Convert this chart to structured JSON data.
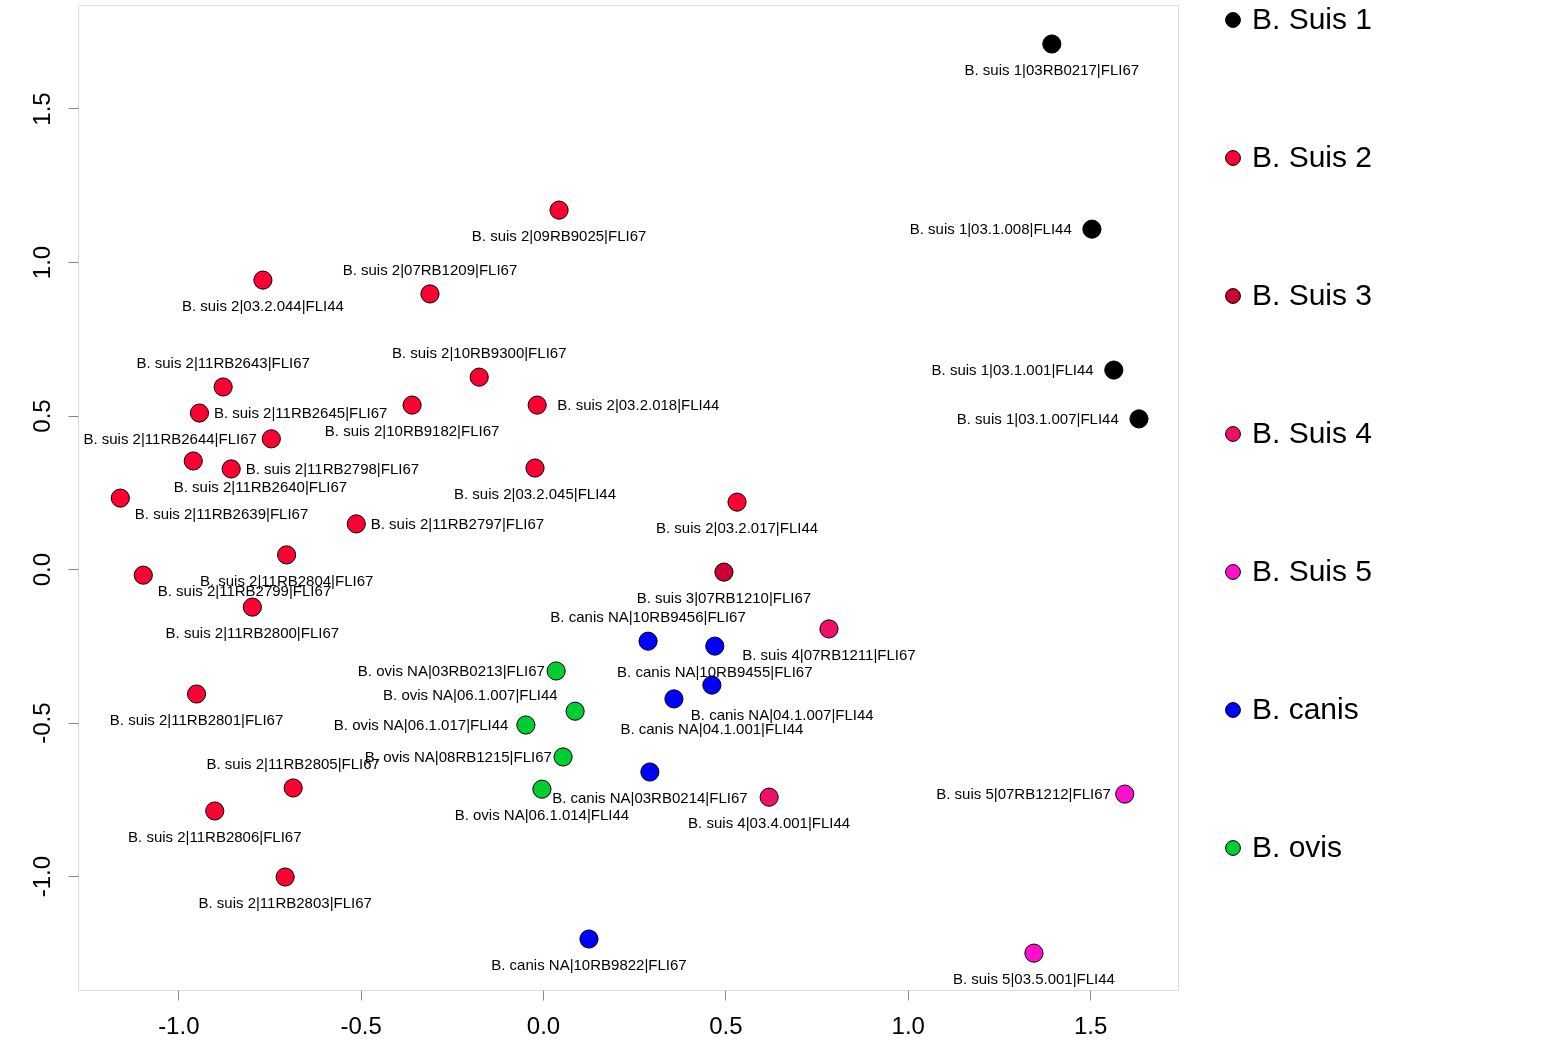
{
  "chart_data": {
    "type": "scatter",
    "legend": "right",
    "grid": false,
    "marker": "circle",
    "xlim": [
      -1.275,
      1.741
    ],
    "ylim": [
      -1.371,
      1.837
    ],
    "xticks": [
      {
        "value": -1,
        "label": "-1.0"
      },
      {
        "value": -0.5,
        "label": "-0.5"
      },
      {
        "value": 0,
        "label": "0.0"
      },
      {
        "value": 0.5,
        "label": "0.5"
      },
      {
        "value": 1,
        "label": "1.0"
      },
      {
        "value": 1.5,
        "label": "1.5"
      }
    ],
    "yticks": [
      {
        "value": -1,
        "label": "-1.0"
      },
      {
        "value": -0.5,
        "label": "-0.5"
      },
      {
        "value": 0,
        "label": "0.0"
      },
      {
        "value": 0.5,
        "label": "0.5"
      },
      {
        "value": 1,
        "label": "1.0"
      },
      {
        "value": 1.5,
        "label": "1.5"
      }
    ],
    "series": [
      {
        "name": "B. Suis 1",
        "color": "#000000",
        "x": [
          1.395,
          1.505,
          1.565,
          1.634
        ],
        "values": [
          1.71,
          1.107,
          0.648,
          0.489
        ]
      },
      {
        "name": "B. Suis 2",
        "color": "#ff0033",
        "x": [
          0.044,
          -0.768,
          -0.31,
          -0.877,
          -0.175,
          -0.359,
          -0.016,
          -0.942,
          -0.745,
          -0.959,
          -0.855,
          -0.022,
          -1.159,
          -0.512,
          0.532,
          -0.703,
          -1.096,
          -0.797,
          -0.95,
          -0.685,
          -0.9,
          -0.707
        ],
        "values": [
          1.169,
          0.941,
          0.896,
          0.593,
          0.625,
          0.534,
          0.534,
          0.508,
          0.424,
          0.352,
          0.326,
          0.329,
          0.231,
          0.147,
          0.218,
          0.046,
          -0.02,
          -0.124,
          -0.407,
          -0.713,
          -0.788,
          -1.003
        ]
      },
      {
        "name": "B. Suis 3",
        "color": "#cc0033",
        "x": [
          0.496
        ],
        "values": [
          -0.01
        ]
      },
      {
        "name": "B. Suis 4",
        "color": "#f0106a",
        "x": [
          0.784,
          0.62
        ],
        "values": [
          -0.195,
          -0.743
        ]
      },
      {
        "name": "B. Suis 5",
        "color": "#ff10cc",
        "x": [
          1.595,
          1.346
        ],
        "values": [
          -0.733,
          -1.251
        ]
      },
      {
        "name": "B.  canis",
        "color": "#0000ff",
        "x": [
          0.288,
          0.471,
          0.463,
          0.359,
          0.293,
          0.126
        ],
        "values": [
          -0.235,
          -0.251,
          -0.378,
          -0.423,
          -0.661,
          -1.205
        ]
      },
      {
        "name": "B. ovis",
        "color": "#00cc33",
        "x": [
          0.036,
          0.088,
          -0.047,
          0.055,
          -0.003
        ],
        "values": [
          -0.332,
          -0.463,
          -0.508,
          -0.612,
          -0.717
        ]
      }
    ],
    "annotations": [
      {
        "text": "B. suis 1|03RB0217|FLI67",
        "x": 1.395,
        "y": 1.71
      },
      {
        "text": "B. suis 1|03.1.008|FLI44",
        "x": 1.505,
        "y": 1.107
      },
      {
        "text": "B. suis 1|03.1.001|FLI44",
        "x": 1.565,
        "y": 0.648
      },
      {
        "text": "B. suis 1|03.1.007|FLI44",
        "x": 1.634,
        "y": 0.489
      },
      {
        "text": "B. suis 2|09RB9025|FLI67",
        "x": 0.044,
        "y": 1.169
      },
      {
        "text": "B. suis 2|03.2.044|FLI44",
        "x": -0.768,
        "y": 0.941
      },
      {
        "text": "B. suis 2|07RB1209|FLI67",
        "x": -0.31,
        "y": 0.896
      },
      {
        "text": "B. suis 2|11RB2643|FLI67",
        "x": -0.877,
        "y": 0.593
      },
      {
        "text": "B. suis 2|10RB9300|FLI67",
        "x": -0.175,
        "y": 0.625
      },
      {
        "text": "B. suis 2|10RB9182|FLI67",
        "x": -0.359,
        "y": 0.534
      },
      {
        "text": "B. suis 2|03.2.018|FLI44",
        "x": -0.016,
        "y": 0.534
      },
      {
        "text": "B. suis 2|11RB2645|FLI67",
        "x": -0.942,
        "y": 0.508
      },
      {
        "text": "B. suis 2|11RB2644|FLI67",
        "x": -0.745,
        "y": 0.424
      },
      {
        "text": "B. suis 2|11RB2640|FLI67",
        "x": -0.959,
        "y": 0.352
      },
      {
        "text": "B. suis 2|11RB2798|FLI67",
        "x": -0.855,
        "y": 0.326
      },
      {
        "text": "B. suis 2|03.2.045|FLI44",
        "x": -0.022,
        "y": 0.329
      },
      {
        "text": "B. suis 2|11RB2639|FLI67",
        "x": -1.159,
        "y": 0.231
      },
      {
        "text": "B. suis 2|11RB2797|FLI67",
        "x": -0.512,
        "y": 0.147
      },
      {
        "text": "B. suis 2|03.2.017|FLI44",
        "x": 0.532,
        "y": 0.218
      },
      {
        "text": "B. suis 2|11RB2804|FLI67",
        "x": -0.703,
        "y": 0.046
      },
      {
        "text": "B. suis 2|11RB2799|FLI67",
        "x": -1.096,
        "y": -0.02
      },
      {
        "text": "B. suis 2|11RB2800|FLI67",
        "x": -0.797,
        "y": -0.124
      },
      {
        "text": "B. suis 2|11RB2801|FLI67",
        "x": -0.95,
        "y": -0.407
      },
      {
        "text": "B. suis 2|11RB2805|FLI67",
        "x": -0.685,
        "y": -0.713
      },
      {
        "text": "B. suis 2|11RB2806|FLI67",
        "x": -0.9,
        "y": -0.788
      },
      {
        "text": "B. suis 2|11RB2803|FLI67",
        "x": -0.707,
        "y": -1.003
      },
      {
        "text": "B. suis 3|07RB1210|FLI67",
        "x": 0.496,
        "y": -0.01
      },
      {
        "text": "B. suis 4|07RB1211|FLI67",
        "x": 0.784,
        "y": -0.195
      },
      {
        "text": "B. suis 4|03.4.001|FLI44",
        "x": 0.62,
        "y": -0.743
      },
      {
        "text": "B. suis 5|07RB1212|FLI67",
        "x": 1.595,
        "y": -0.733
      },
      {
        "text": "B. suis 5|03.5.001|FLI44",
        "x": 1.346,
        "y": -1.251
      },
      {
        "text": "B. canis NA|10RB9456|FLI67",
        "x": 0.288,
        "y": -0.235
      },
      {
        "text": "B. canis NA|10RB9455|FLI67",
        "x": 0.471,
        "y": -0.251
      },
      {
        "text": "B. canis NA|04.1.001|FLI44",
        "x": 0.463,
        "y": -0.378
      },
      {
        "text": "B. canis NA|04.1.007|FLI44",
        "x": 0.359,
        "y": -0.423
      },
      {
        "text": "B. canis NA|03RB0214|FLI67",
        "x": 0.293,
        "y": -0.661
      },
      {
        "text": "B. canis NA|10RB9822|FLI67",
        "x": 0.126,
        "y": -1.205
      },
      {
        "text": "B. ovis NA|03RB0213|FLI67",
        "x": 0.036,
        "y": -0.332
      },
      {
        "text": "B. ovis NA|06.1.007|FLI44",
        "x": 0.088,
        "y": -0.463
      },
      {
        "text": "B. ovis NA|06.1.017|FLI44",
        "x": -0.047,
        "y": -0.508
      },
      {
        "text": "B. ovis NA|08RB1215|FLI67",
        "x": 0.055,
        "y": -0.612
      },
      {
        "text": "B. ovis NA|06.1.014|FLI44",
        "x": -0.003,
        "y": -0.717
      }
    ]
  }
}
